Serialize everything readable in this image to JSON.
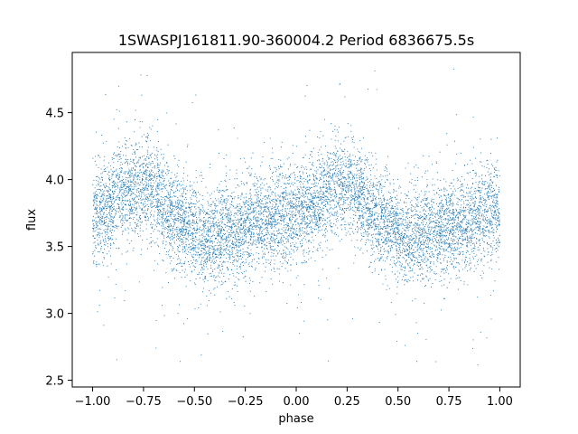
{
  "chart_data": {
    "type": "scatter",
    "title": "1SWASPJ161811.90-360004.2 Period 6836675.5s",
    "xlabel": "phase",
    "ylabel": "flux",
    "xlim": [
      -1.1,
      1.1
    ],
    "ylim": [
      2.45,
      4.95
    ],
    "x_ticks": [
      -1.0,
      -0.75,
      -0.5,
      -0.25,
      0.0,
      0.25,
      0.5,
      0.75,
      1.0
    ],
    "x_tick_labels": [
      "−1.00",
      "−0.75",
      "−0.50",
      "−0.25",
      "0.00",
      "0.25",
      "0.50",
      "0.75",
      "1.00"
    ],
    "y_ticks": [
      2.5,
      3.0,
      3.5,
      4.0,
      4.5
    ],
    "y_tick_labels": [
      "2.5",
      "3.0",
      "3.5",
      "4.0",
      "4.5"
    ],
    "grid": false,
    "legend": "none",
    "point_color": "#1f77b4",
    "series": [
      {
        "phase_profile": {
          "x": [
            -1.0,
            -0.9,
            -0.8,
            -0.75,
            -0.7,
            -0.6,
            -0.5,
            -0.45,
            -0.4,
            -0.3,
            -0.2,
            -0.1,
            0.0,
            0.1,
            0.2,
            0.25,
            0.3,
            0.4,
            0.5,
            0.55,
            0.6,
            0.7,
            0.8,
            0.9,
            1.0
          ],
          "y_center": [
            3.75,
            3.82,
            3.95,
            3.95,
            3.9,
            3.72,
            3.6,
            3.55,
            3.58,
            3.62,
            3.68,
            3.72,
            3.75,
            3.82,
            3.95,
            3.95,
            3.9,
            3.72,
            3.6,
            3.55,
            3.58,
            3.62,
            3.68,
            3.72,
            3.75
          ],
          "spread": 0.18
        },
        "x_range": [
          -1.0,
          1.0
        ],
        "y_range": [
          2.6,
          4.85
        ]
      }
    ]
  }
}
